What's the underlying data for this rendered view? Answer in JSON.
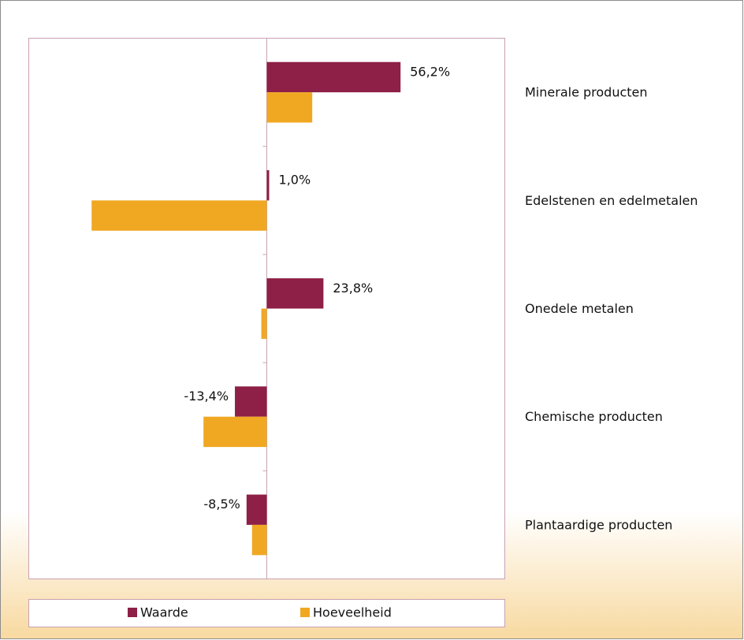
{
  "chart_data": {
    "type": "bar",
    "orientation": "horizontal",
    "categories": [
      "Minerale producten",
      "Edelstenen en edelmetalen",
      "Onedele metalen",
      "Chemische producten",
      "Plantaardige producten"
    ],
    "series": [
      {
        "name": "Waarde",
        "color": "#8e1f46",
        "values": [
          56.2,
          1.0,
          23.8,
          -13.4,
          -8.5
        ],
        "value_labels": [
          "56,2%",
          "1,0%",
          "23,8%",
          "-13,4%",
          "-8,5%"
        ]
      },
      {
        "name": "Hoeveelheid",
        "color": "#f0a823",
        "values": [
          19.1,
          -73.6,
          -2.3,
          -26.6,
          -6.2
        ]
      }
    ],
    "xlim": [
      -100,
      100
    ]
  }
}
